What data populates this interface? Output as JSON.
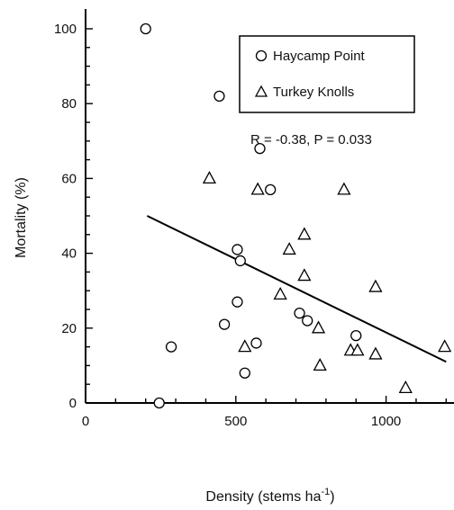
{
  "chart_data": {
    "type": "scatter",
    "xlabel": "Density (stems ha",
    "xlabel_sup": "-1",
    "xlabel_close": ")",
    "ylabel": "Mortality (%)",
    "xlim": [
      0,
      1200
    ],
    "ylim": [
      0,
      100
    ],
    "x_ticks": [
      0,
      500,
      1000
    ],
    "x_tick_labels": [
      "0",
      "500",
      "1000"
    ],
    "y_ticks": [
      0,
      20,
      40,
      60,
      80,
      100
    ],
    "y_tick_labels": [
      "0",
      "20",
      "40",
      "60",
      "80",
      "100"
    ],
    "grid": false,
    "legend_position": "top-right",
    "series": [
      {
        "name": "Haycamp Point",
        "marker": "circle",
        "points": [
          {
            "x": 200,
            "y": 100
          },
          {
            "x": 445,
            "y": 82
          },
          {
            "x": 580,
            "y": 68
          },
          {
            "x": 615,
            "y": 57
          },
          {
            "x": 505,
            "y": 41
          },
          {
            "x": 515,
            "y": 38
          },
          {
            "x": 505,
            "y": 27
          },
          {
            "x": 462,
            "y": 21
          },
          {
            "x": 712,
            "y": 24
          },
          {
            "x": 738,
            "y": 22
          },
          {
            "x": 568,
            "y": 16
          },
          {
            "x": 285,
            "y": 15
          },
          {
            "x": 530,
            "y": 8
          },
          {
            "x": 900,
            "y": 18
          },
          {
            "x": 245,
            "y": 0
          }
        ]
      },
      {
        "name": "Turkey Knolls",
        "marker": "triangle",
        "points": [
          {
            "x": 412,
            "y": 60
          },
          {
            "x": 573,
            "y": 57
          },
          {
            "x": 860,
            "y": 57
          },
          {
            "x": 728,
            "y": 45
          },
          {
            "x": 678,
            "y": 41
          },
          {
            "x": 728,
            "y": 34
          },
          {
            "x": 648,
            "y": 29
          },
          {
            "x": 965,
            "y": 31
          },
          {
            "x": 775,
            "y": 20
          },
          {
            "x": 530,
            "y": 15
          },
          {
            "x": 882,
            "y": 14
          },
          {
            "x": 905,
            "y": 14
          },
          {
            "x": 965,
            "y": 13
          },
          {
            "x": 1195,
            "y": 15
          },
          {
            "x": 780,
            "y": 10
          },
          {
            "x": 1065,
            "y": 4
          }
        ]
      }
    ],
    "regression_line": {
      "x": [
        205,
        1200
      ],
      "y": [
        50,
        11
      ]
    },
    "annotation": "R = -0.38, P = 0.033"
  }
}
